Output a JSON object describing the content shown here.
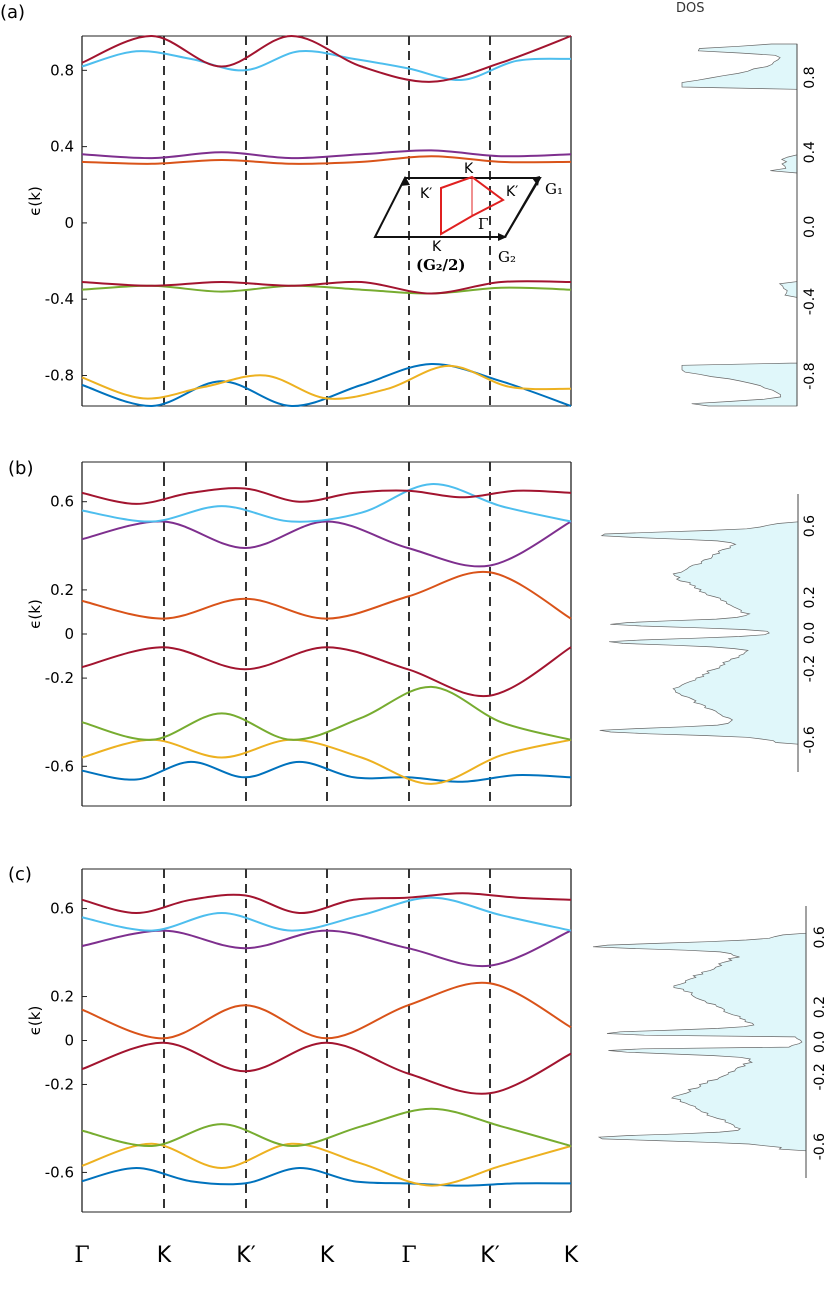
{
  "panel_labels": [
    "(a)",
    "(b)",
    "(c)"
  ],
  "dos_label": "DOS",
  "ylabel": "ϵ(k)",
  "k_path_labels": [
    "Γ",
    "K",
    "K′",
    "K",
    "Γ",
    "K′",
    "K"
  ],
  "inset": {
    "K_top": "K",
    "K_prime_left": "K′",
    "K_prime_right": "K′",
    "Gamma": "Γ",
    "K_bottom": "K",
    "half_G2": "(G₂/2)",
    "G1": "G₁",
    "G2": "G₂"
  },
  "colors": {
    "band1": "#0072BD",
    "band2": "#EDB120",
    "band3": "#77AC30",
    "band4": "#A2142F",
    "band5": "#D95319",
    "band6": "#7E2F8E",
    "band7": "#4DBEEE",
    "band8": "#A2142F",
    "dos_fill": "#E0F7FA",
    "dos_line": "#666666"
  },
  "chart_data": [
    {
      "type": "line",
      "panel": "(a)",
      "xlabel": "",
      "ylabel": "ϵ(k)",
      "x_ticks": [
        "Γ",
        "K",
        "K′",
        "K",
        "Γ",
        "K′",
        "K"
      ],
      "yticks": [
        "0.8",
        "0.4",
        "0",
        "-0.4",
        "-0.8"
      ],
      "ylim": [
        -0.96,
        0.98
      ],
      "band_nodes": [
        [
          -0.85,
          -0.96,
          -0.83,
          -0.96,
          -0.85,
          -0.74,
          -0.83,
          -0.96
        ],
        [
          -0.81,
          -0.92,
          -0.86,
          -0.8,
          -0.92,
          -0.87,
          -0.75,
          -0.86,
          -0.87
        ],
        [
          -0.35,
          -0.33,
          -0.36,
          -0.33,
          -0.35,
          -0.37,
          -0.34,
          -0.35
        ],
        [
          -0.31,
          -0.33,
          -0.31,
          -0.33,
          -0.31,
          -0.37,
          -0.31,
          -0.31
        ],
        [
          0.32,
          0.31,
          0.33,
          0.31,
          0.32,
          0.35,
          0.32,
          0.32
        ],
        [
          0.36,
          0.34,
          0.37,
          0.34,
          0.36,
          0.38,
          0.35,
          0.36
        ],
        [
          0.82,
          0.9,
          0.86,
          0.8,
          0.9,
          0.86,
          0.81,
          0.75,
          0.85,
          0.86
        ],
        [
          0.84,
          0.98,
          0.82,
          0.98,
          0.82,
          0.74,
          0.84,
          0.98
        ]
      ],
      "dos_yticks": [
        "0.8",
        "0.4",
        "0.0",
        "-0.4",
        "-0.8"
      ]
    },
    {
      "type": "line",
      "panel": "(b)",
      "xlabel": "",
      "ylabel": "ϵ(k)",
      "x_ticks": [
        "Γ",
        "K",
        "K′",
        "K",
        "Γ",
        "K′",
        "K"
      ],
      "yticks": [
        "0.6",
        "0.2",
        "0",
        "-0.2",
        "-0.6"
      ],
      "ylim": [
        -0.78,
        0.78
      ],
      "band_nodes": [
        [
          -0.62,
          -0.66,
          -0.58,
          -0.65,
          -0.58,
          -0.65,
          -0.65,
          -0.67,
          -0.64,
          -0.65
        ],
        [
          -0.56,
          -0.48,
          -0.56,
          -0.48,
          -0.56,
          -0.68,
          -0.55,
          -0.48
        ],
        [
          -0.4,
          -0.48,
          -0.36,
          -0.48,
          -0.38,
          -0.24,
          -0.4,
          -0.48
        ],
        [
          -0.15,
          -0.06,
          -0.16,
          -0.06,
          -0.16,
          -0.28,
          -0.06
        ],
        [
          0.15,
          0.07,
          0.16,
          0.07,
          0.17,
          0.28,
          0.07
        ],
        [
          0.43,
          0.51,
          0.39,
          0.51,
          0.39,
          0.31,
          0.51
        ],
        [
          0.56,
          0.51,
          0.58,
          0.51,
          0.55,
          0.68,
          0.58,
          0.51
        ],
        [
          0.64,
          0.59,
          0.64,
          0.66,
          0.6,
          0.64,
          0.65,
          0.62,
          0.65,
          0.64
        ]
      ],
      "dos_yticks": [
        "0.6",
        "0.2",
        "0.0",
        "-0.2",
        "-0.6"
      ]
    },
    {
      "type": "line",
      "panel": "(c)",
      "xlabel": "",
      "ylabel": "ϵ(k)",
      "x_ticks": [
        "Γ",
        "K",
        "K′",
        "K",
        "Γ",
        "K′",
        "K"
      ],
      "yticks": [
        "0.6",
        "0.2",
        "0",
        "-0.2",
        "-0.6"
      ],
      "ylim": [
        -0.78,
        0.78
      ],
      "band_nodes": [
        [
          -0.64,
          -0.58,
          -0.64,
          -0.65,
          -0.58,
          -0.64,
          -0.65,
          -0.66,
          -0.65,
          -0.65
        ],
        [
          -0.57,
          -0.47,
          -0.58,
          -0.47,
          -0.56,
          -0.66,
          -0.57,
          -0.48
        ],
        [
          -0.41,
          -0.48,
          -0.38,
          -0.48,
          -0.39,
          -0.31,
          -0.39,
          -0.48
        ],
        [
          -0.13,
          -0.01,
          -0.14,
          -0.01,
          -0.15,
          -0.24,
          -0.06
        ],
        [
          0.14,
          0.01,
          0.16,
          0.01,
          0.16,
          0.26,
          0.06
        ],
        [
          0.43,
          0.5,
          0.42,
          0.5,
          0.42,
          0.34,
          0.5
        ],
        [
          0.56,
          0.5,
          0.58,
          0.5,
          0.57,
          0.65,
          0.57,
          0.5
        ],
        [
          0.64,
          0.58,
          0.64,
          0.66,
          0.58,
          0.64,
          0.65,
          0.67,
          0.65,
          0.64
        ]
      ],
      "dos_yticks": [
        "0.6",
        "0.2",
        "0.0",
        "-0.2",
        "-0.6"
      ]
    }
  ]
}
